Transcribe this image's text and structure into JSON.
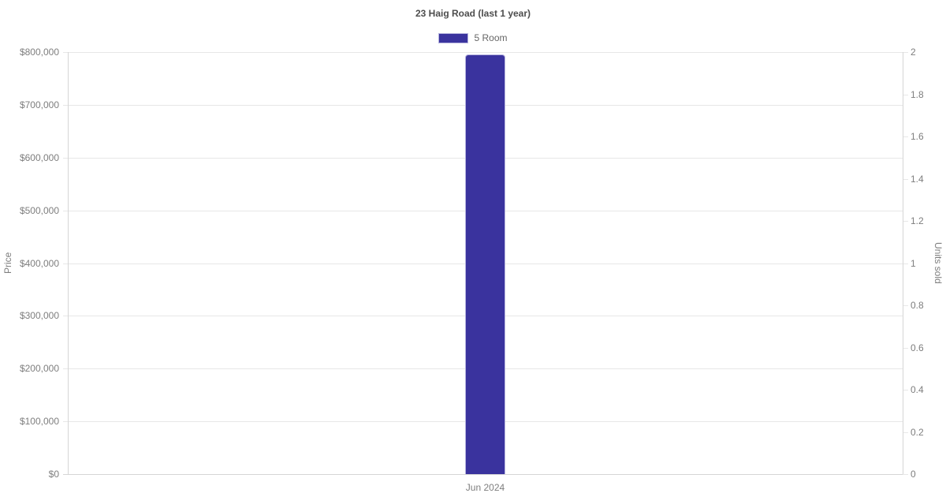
{
  "chart_data": {
    "type": "bar",
    "title": "23 Haig Road (last 1 year)",
    "categories": [
      "Jun 2024"
    ],
    "series": [
      {
        "name": "5 Room",
        "yaxis": "left",
        "values": [
          795000
        ],
        "color": "#3a339e"
      }
    ],
    "y_left": {
      "label": "Price",
      "min": 0,
      "max": 800000,
      "tick_step": 100000,
      "tick_labels": [
        "$0",
        "$100,000",
        "$200,000",
        "$300,000",
        "$400,000",
        "$500,000",
        "$600,000",
        "$700,000",
        "$800,000"
      ]
    },
    "y_right": {
      "label": "Units sold",
      "min": 0,
      "max": 2,
      "tick_step": 0.2,
      "tick_labels": [
        "0",
        "0.2",
        "0.4",
        "0.6",
        "0.8",
        "1",
        "1.2",
        "1.4",
        "1.6",
        "1.8",
        "2"
      ]
    },
    "legend": {
      "position": "top",
      "entries": [
        {
          "label": "5 Room",
          "color": "#3a339e"
        }
      ]
    },
    "grid": true
  },
  "colors": {
    "bar": "#3a339e",
    "bar_border": "#b6b4de",
    "gridline": "#e7e7e7",
    "axis_line": "#d6d6d6",
    "tick_text": "#7e7e7e",
    "title_text": "#4d4d4d",
    "legend_text": "#666666",
    "background": "#ffffff"
  }
}
